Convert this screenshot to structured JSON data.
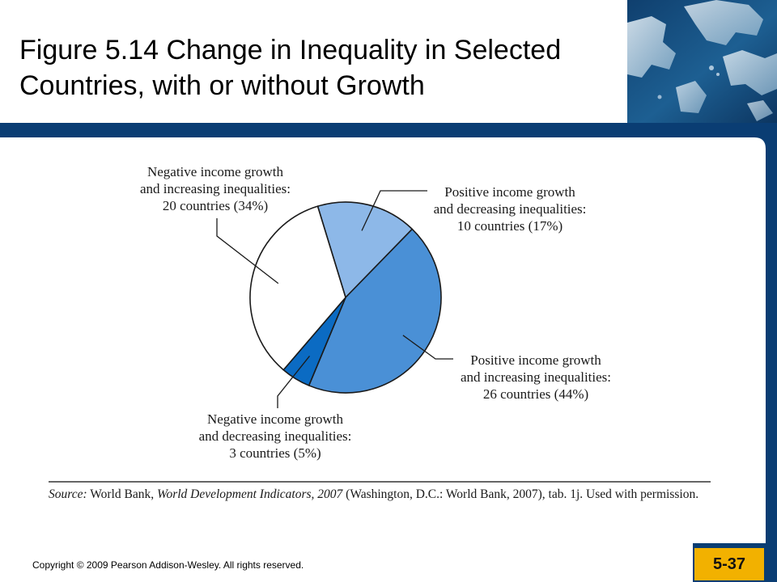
{
  "slide": {
    "title": "Figure 5.14 Change in Inequality in Selected Countries, with or without Growth",
    "copyright": "Copyright © 2009 Pearson Addison-Wesley. All rights reserved.",
    "page_number": "5-37",
    "colors": {
      "frame": "#0a3d73",
      "page_badge": "#f2b100",
      "background": "#ffffff"
    }
  },
  "chart_data": {
    "type": "pie",
    "title": "",
    "slices": [
      {
        "lines": [
          "Positive income growth",
          "and decreasing inequalities:",
          "10 countries (17%)"
        ],
        "countries": 10,
        "percent": 17,
        "color": "#8db8e8"
      },
      {
        "lines": [
          "Positive income growth",
          "and increasing inequalities:",
          "26 countries (44%)"
        ],
        "countries": 26,
        "percent": 44,
        "color": "#4a90d6"
      },
      {
        "lines": [
          "Negative income growth",
          "and decreasing inequalities:",
          "3 countries (5%)"
        ],
        "countries": 3,
        "percent": 5,
        "color": "#0b6bc3"
      },
      {
        "lines": [
          "Negative income growth",
          "and increasing inequalities:",
          "20 countries (34%)"
        ],
        "countries": 20,
        "percent": 34,
        "color": "#ffffff"
      }
    ]
  },
  "source": {
    "label": "Source:",
    "text_a": "World Bank,",
    "title": "World Development Indicators, 2007",
    "text_b": "(Washington, D.C.: World Bank, 2007), tab. 1j. Used with permission."
  }
}
